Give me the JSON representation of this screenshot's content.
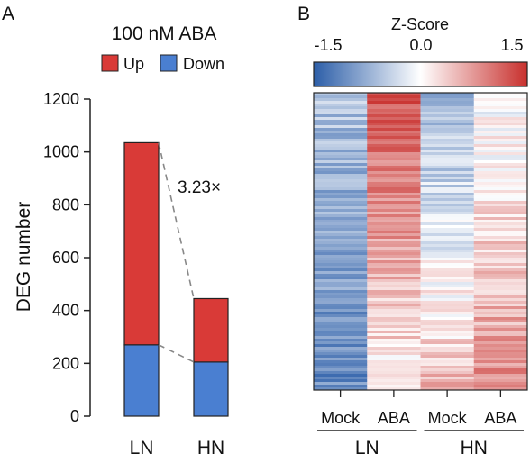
{
  "panels": {
    "a": {
      "letter": "A",
      "title": "100 nM ABA",
      "fold_change": "3.23×"
    },
    "b": {
      "letter": "B",
      "colorbar_title": "Z-Score",
      "colorbar_ticks": [
        "-1.5",
        "0.0",
        "1.5"
      ],
      "colorbar_colors": [
        "#2c5ea8",
        "#ffffff",
        "#c8302d"
      ]
    }
  },
  "chart_data": [
    {
      "type": "bar",
      "stacked": true,
      "title": "100 nM ABA",
      "xlabel": "",
      "ylabel": "DEG number",
      "categories": [
        "LN",
        "HN"
      ],
      "series": [
        {
          "name": "Down",
          "values": [
            270,
            205
          ],
          "color": "#4a7fd1"
        },
        {
          "name": "Up",
          "values": [
            765,
            240
          ],
          "color": "#d93a37"
        }
      ],
      "totals": [
        1035,
        445
      ],
      "ylim": [
        0,
        1200
      ],
      "yticks": [
        "0",
        "200",
        "400",
        "600",
        "800",
        "1000",
        "1200"
      ],
      "legend_placement": "top",
      "annotation": "3.23×"
    },
    {
      "type": "heatmap",
      "title": "",
      "columns": [
        "Mock",
        "ABA",
        "Mock",
        "ABA"
      ],
      "groups": [
        {
          "label": "LN",
          "columns": [
            0,
            1
          ]
        },
        {
          "label": "HN",
          "columns": [
            2,
            3
          ]
        }
      ],
      "colorbar_label": "Z-Score",
      "zlim": [
        -1.8,
        1.8
      ],
      "colorbar_ticks": [
        -1.5,
        0.0,
        1.5
      ],
      "column_profiles": [
        {
          "column": "Mock (LN)",
          "z_top": -0.7,
          "z_bottom": -1.3
        },
        {
          "column": "ABA (LN)",
          "z_top": 1.4,
          "z_bottom": 0.1
        },
        {
          "column": "Mock (HN)",
          "z_top": -0.8,
          "z_bottom": 0.6
        },
        {
          "column": "ABA (HN)",
          "z_top": -0.1,
          "z_bottom": 1.0
        }
      ]
    }
  ]
}
